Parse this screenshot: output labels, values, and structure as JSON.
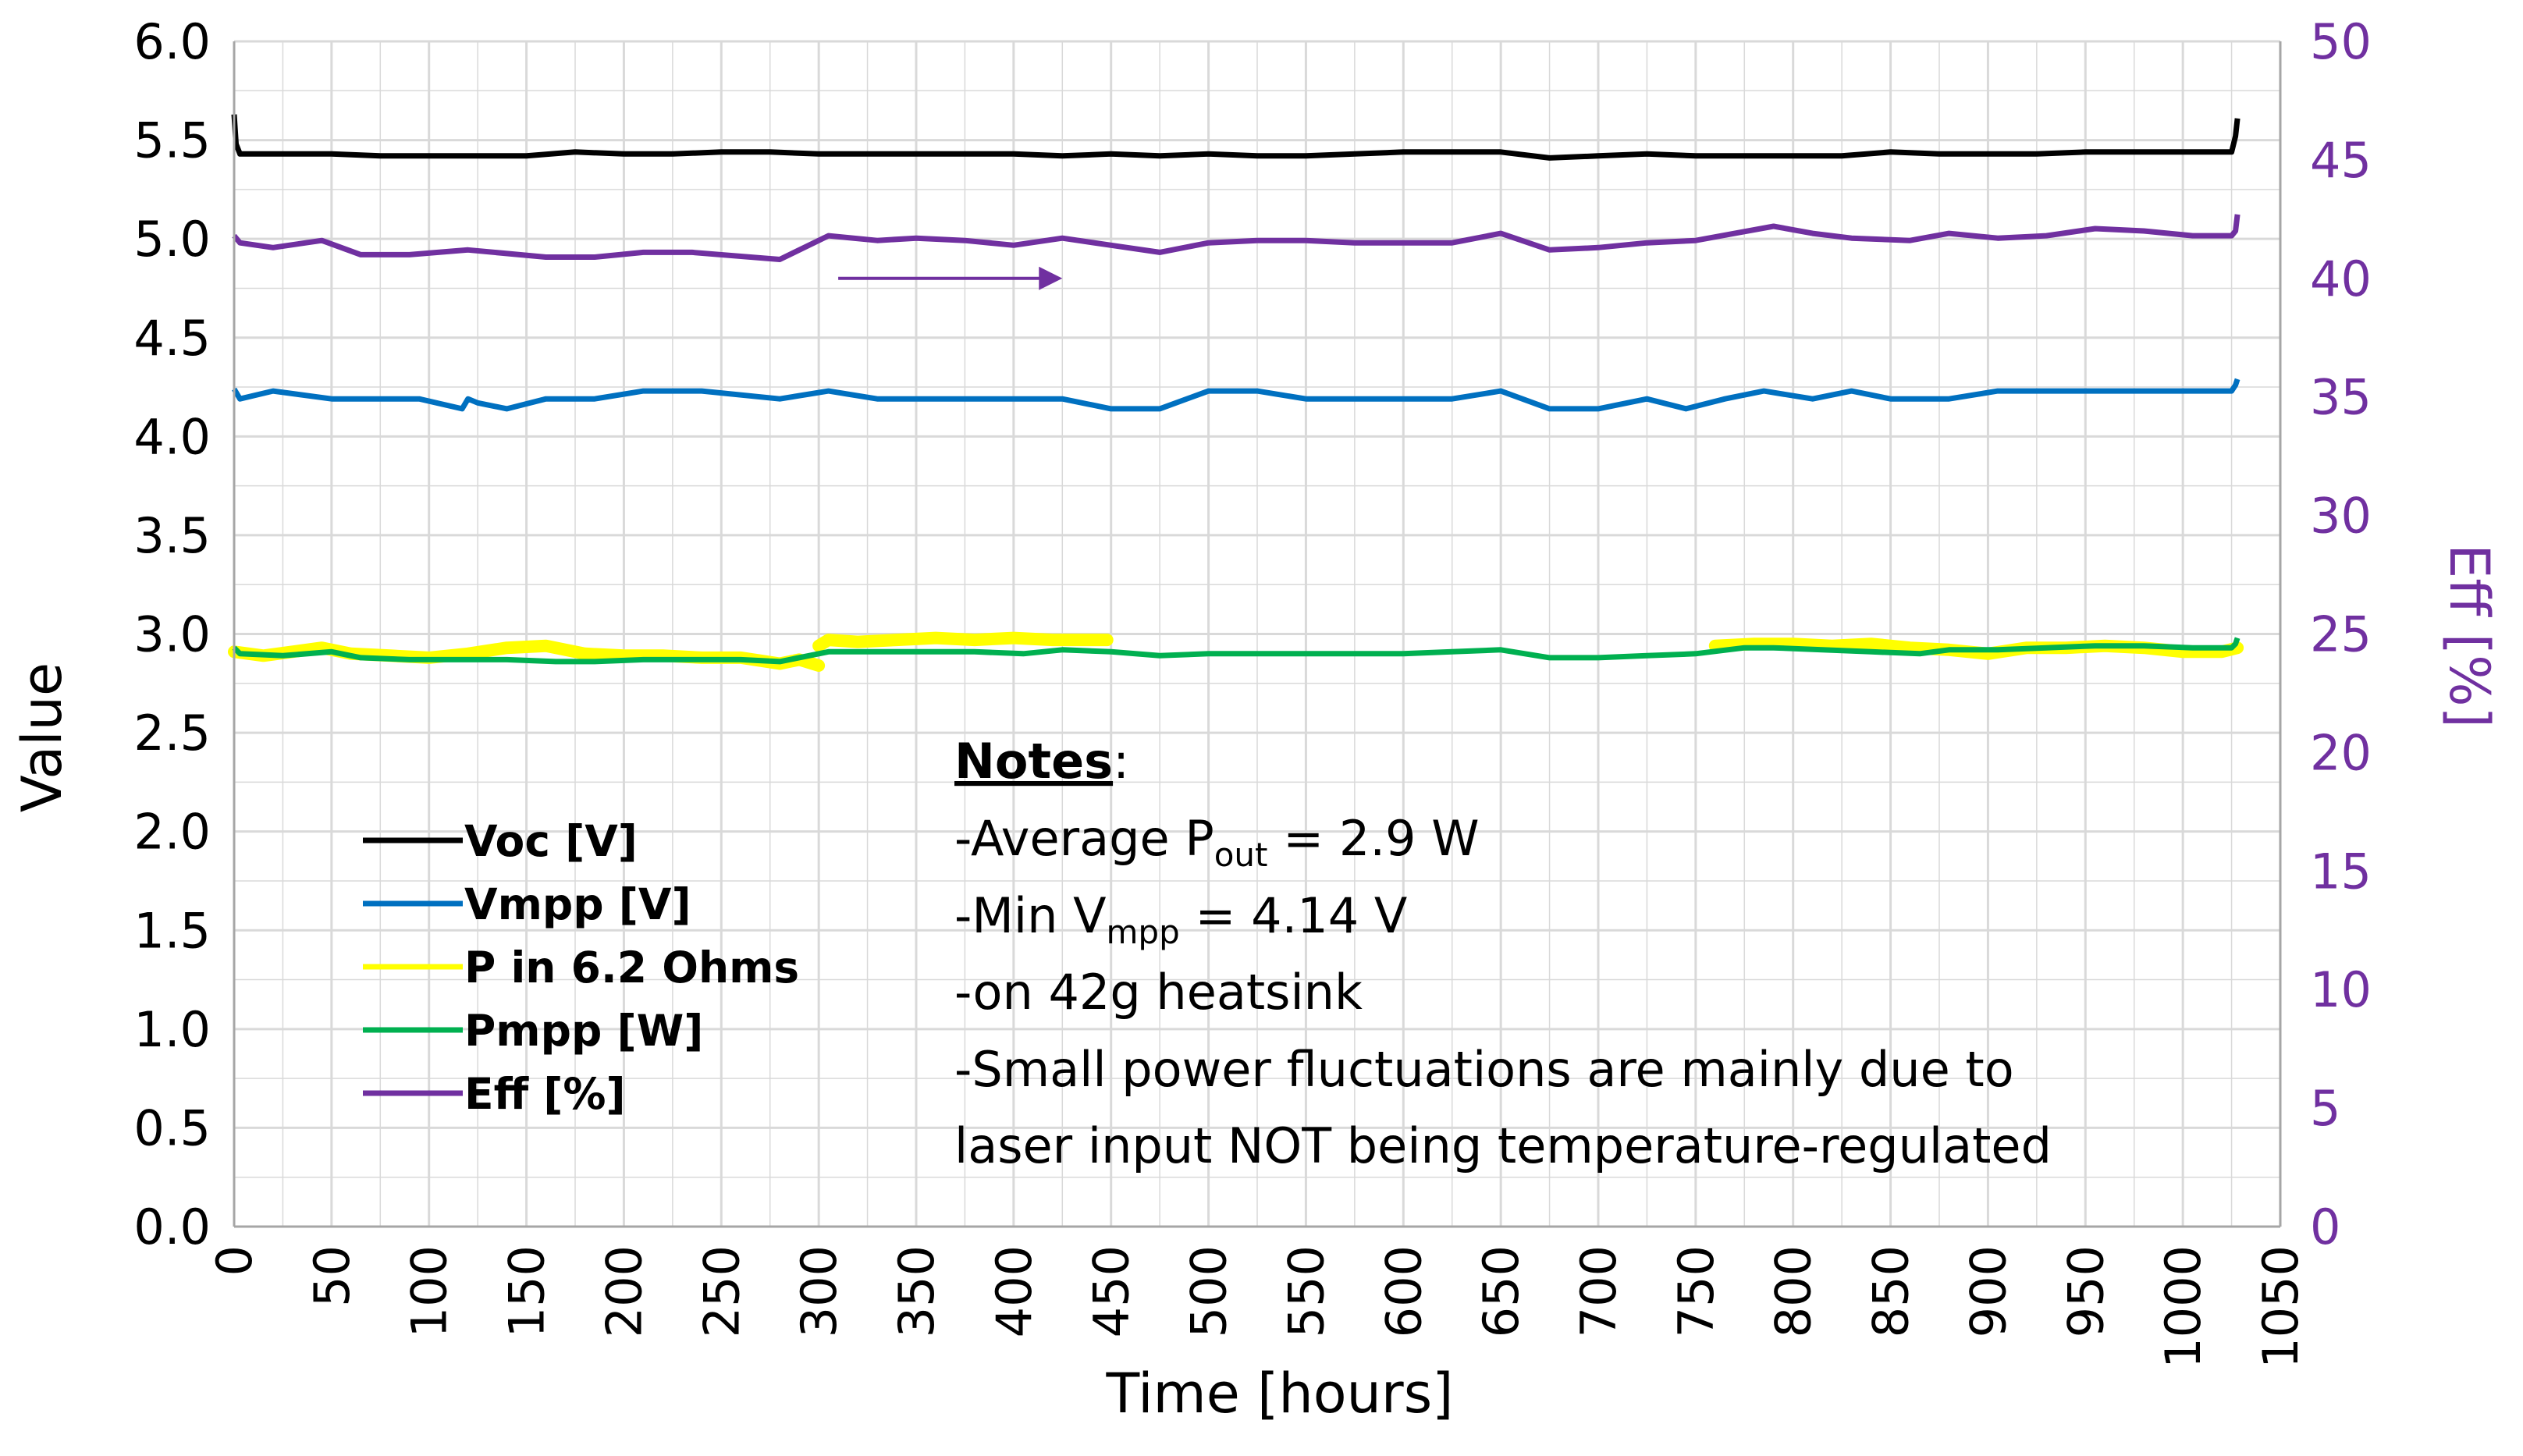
{
  "chart_data": {
    "type": "line",
    "title": "",
    "xlabel": "Time [hours]",
    "ylabel": "Value",
    "y2label": "Eff [%]",
    "xlim": [
      0,
      1050
    ],
    "ylim": [
      0,
      6
    ],
    "y2lim": [
      0,
      50
    ],
    "grid": true,
    "xticks": [
      "0",
      "50",
      "100",
      "150",
      "200",
      "250",
      "300",
      "350",
      "400",
      "450",
      "500",
      "550",
      "600",
      "650",
      "700",
      "750",
      "800",
      "850",
      "900",
      "950",
      "1000",
      "1050"
    ],
    "yticks": [
      "0.0",
      "0.5",
      "1.0",
      "1.5",
      "2.0",
      "2.5",
      "3.0",
      "3.5",
      "4.0",
      "4.5",
      "5.0",
      "5.5",
      "6.0"
    ],
    "y2ticks": [
      "0",
      "5",
      "10",
      "15",
      "20",
      "25",
      "30",
      "35",
      "40",
      "45",
      "50"
    ],
    "colors": {
      "voc": "#000000",
      "vmpp": "#0070c0",
      "p62": "#ffff00",
      "pmpp": "#00b050",
      "eff": "#7030a0",
      "axis_text": "#000000",
      "right_axis_text": "#7030a0",
      "grid": "#d9d9d9"
    },
    "series": [
      {
        "name": "Voc [V]",
        "key": "voc",
        "axis": "left",
        "color": "#000000",
        "x": [
          0,
          1,
          3,
          25,
          50,
          75,
          100,
          125,
          150,
          175,
          200,
          225,
          250,
          275,
          300,
          325,
          350,
          375,
          400,
          425,
          450,
          475,
          500,
          525,
          550,
          575,
          600,
          625,
          650,
          675,
          700,
          725,
          750,
          775,
          800,
          825,
          850,
          875,
          900,
          925,
          950,
          975,
          1000,
          1025,
          1027,
          1028
        ],
        "values": [
          5.63,
          5.48,
          5.43,
          5.43,
          5.43,
          5.42,
          5.42,
          5.42,
          5.42,
          5.44,
          5.43,
          5.43,
          5.44,
          5.44,
          5.43,
          5.43,
          5.43,
          5.43,
          5.43,
          5.42,
          5.43,
          5.42,
          5.43,
          5.42,
          5.42,
          5.43,
          5.44,
          5.44,
          5.44,
          5.41,
          5.42,
          5.43,
          5.42,
          5.42,
          5.42,
          5.42,
          5.44,
          5.43,
          5.43,
          5.43,
          5.44,
          5.44,
          5.44,
          5.44,
          5.52,
          5.61
        ]
      },
      {
        "name": "Vmpp [V]",
        "key": "vmpp",
        "axis": "left",
        "color": "#0070c0",
        "x": [
          0,
          3,
          20,
          50,
          75,
          95,
          117,
          120,
          125,
          140,
          160,
          185,
          210,
          240,
          280,
          305,
          330,
          360,
          400,
          425,
          450,
          475,
          500,
          525,
          550,
          575,
          600,
          625,
          650,
          675,
          700,
          725,
          745,
          765,
          785,
          810,
          830,
          850,
          880,
          905,
          930,
          955,
          980,
          1005,
          1025,
          1027,
          1028
        ],
        "values": [
          4.24,
          4.19,
          4.23,
          4.19,
          4.19,
          4.19,
          4.14,
          4.19,
          4.17,
          4.14,
          4.19,
          4.19,
          4.23,
          4.23,
          4.19,
          4.23,
          4.19,
          4.19,
          4.19,
          4.19,
          4.14,
          4.14,
          4.23,
          4.23,
          4.19,
          4.19,
          4.19,
          4.19,
          4.23,
          4.14,
          4.14,
          4.19,
          4.14,
          4.19,
          4.23,
          4.19,
          4.23,
          4.19,
          4.19,
          4.23,
          4.23,
          4.23,
          4.23,
          4.23,
          4.23,
          4.26,
          4.29
        ]
      },
      {
        "name": "P in 6.2 Ohms",
        "key": "p62",
        "axis": "left",
        "color": "#ffff00",
        "segments": [
          {
            "x": [
              0,
              15,
              30,
              45,
              60,
              80,
              100,
              120,
              140,
              160,
              180,
              200,
              220,
              240,
              260,
              280,
              290,
              300
            ],
            "values": [
              2.91,
              2.89,
              2.91,
              2.93,
              2.9,
              2.89,
              2.88,
              2.9,
              2.93,
              2.94,
              2.9,
              2.89,
              2.89,
              2.88,
              2.88,
              2.85,
              2.87,
              2.84
            ]
          },
          {
            "x": [
              300,
              305,
              320,
              340,
              360,
              380,
              400,
              420,
              440,
              448
            ],
            "values": [
              2.94,
              2.97,
              2.96,
              2.97,
              2.98,
              2.97,
              2.98,
              2.97,
              2.97,
              2.97
            ]
          },
          {
            "x": [
              760,
              780,
              800,
              820,
              840,
              860,
              880,
              900,
              920,
              940,
              960,
              980,
              1000,
              1020,
              1028
            ],
            "values": [
              2.94,
              2.95,
              2.95,
              2.94,
              2.95,
              2.93,
              2.92,
              2.9,
              2.93,
              2.93,
              2.94,
              2.93,
              2.91,
              2.91,
              2.93
            ]
          }
        ]
      },
      {
        "name": "Pmpp [W]",
        "key": "pmpp",
        "axis": "left",
        "color": "#00b050",
        "x": [
          0,
          3,
          25,
          50,
          65,
          90,
          115,
          140,
          165,
          185,
          210,
          235,
          260,
          280,
          305,
          330,
          355,
          380,
          405,
          425,
          450,
          475,
          500,
          525,
          550,
          575,
          600,
          625,
          650,
          675,
          700,
          725,
          750,
          775,
          790,
          815,
          840,
          865,
          880,
          905,
          930,
          955,
          980,
          1005,
          1025,
          1027,
          1028
        ],
        "values": [
          2.93,
          2.9,
          2.89,
          2.91,
          2.88,
          2.87,
          2.87,
          2.87,
          2.86,
          2.86,
          2.87,
          2.87,
          2.87,
          2.86,
          2.91,
          2.91,
          2.91,
          2.91,
          2.9,
          2.92,
          2.91,
          2.89,
          2.9,
          2.9,
          2.9,
          2.9,
          2.9,
          2.91,
          2.92,
          2.88,
          2.88,
          2.89,
          2.9,
          2.93,
          2.93,
          2.92,
          2.91,
          2.9,
          2.92,
          2.92,
          2.93,
          2.94,
          2.94,
          2.93,
          2.93,
          2.95,
          2.98
        ]
      },
      {
        "name": "Eff [%]",
        "key": "eff",
        "axis": "right",
        "color": "#7030a0",
        "x": [
          0,
          3,
          20,
          45,
          65,
          90,
          120,
          160,
          185,
          210,
          235,
          280,
          305,
          330,
          350,
          375,
          400,
          425,
          450,
          475,
          500,
          525,
          550,
          575,
          600,
          625,
          650,
          675,
          700,
          725,
          750,
          770,
          790,
          810,
          830,
          860,
          880,
          905,
          930,
          955,
          980,
          1005,
          1025,
          1027,
          1028
        ],
        "values": [
          41.8,
          41.5,
          41.3,
          41.6,
          41.0,
          41.0,
          41.2,
          40.9,
          40.9,
          41.1,
          41.1,
          40.8,
          41.8,
          41.6,
          41.7,
          41.6,
          41.4,
          41.7,
          41.4,
          41.1,
          41.5,
          41.6,
          41.6,
          41.5,
          41.5,
          41.5,
          41.9,
          41.2,
          41.3,
          41.5,
          41.6,
          41.9,
          42.2,
          41.9,
          41.7,
          41.6,
          41.9,
          41.7,
          41.8,
          42.1,
          42.0,
          41.8,
          41.8,
          42.0,
          42.7
        ]
      }
    ],
    "legend": {
      "placement": "bottom-left",
      "entries": [
        {
          "label": "Voc [V]",
          "key": "voc"
        },
        {
          "label": "Vmpp [V]",
          "key": "vmpp"
        },
        {
          "label": "P in 6.2 Ohms",
          "key": "p62"
        },
        {
          "label": "Pmpp [W]",
          "key": "pmpp"
        },
        {
          "label": "Eff [%]",
          "key": "eff"
        }
      ]
    },
    "arrow_annotation": {
      "from_x": 310,
      "to_x": 425,
      "y_right": 40.0,
      "direction": "right",
      "meaning": "Eff series reads on right axis"
    },
    "notes": {
      "heading": "Notes",
      "heading_suffix": ":",
      "line1": {
        "prefix": "-Average P",
        "sub": "out",
        "suffix": " = 2.9 W"
      },
      "line2": {
        "prefix": "-Min V",
        "sub": "mpp",
        "suffix": " = 4.14 V"
      },
      "line3": "-on 42g heatsink",
      "line4": "-Small power fluctuations are mainly due to",
      "line5": "laser input NOT being temperature-regulated"
    }
  }
}
